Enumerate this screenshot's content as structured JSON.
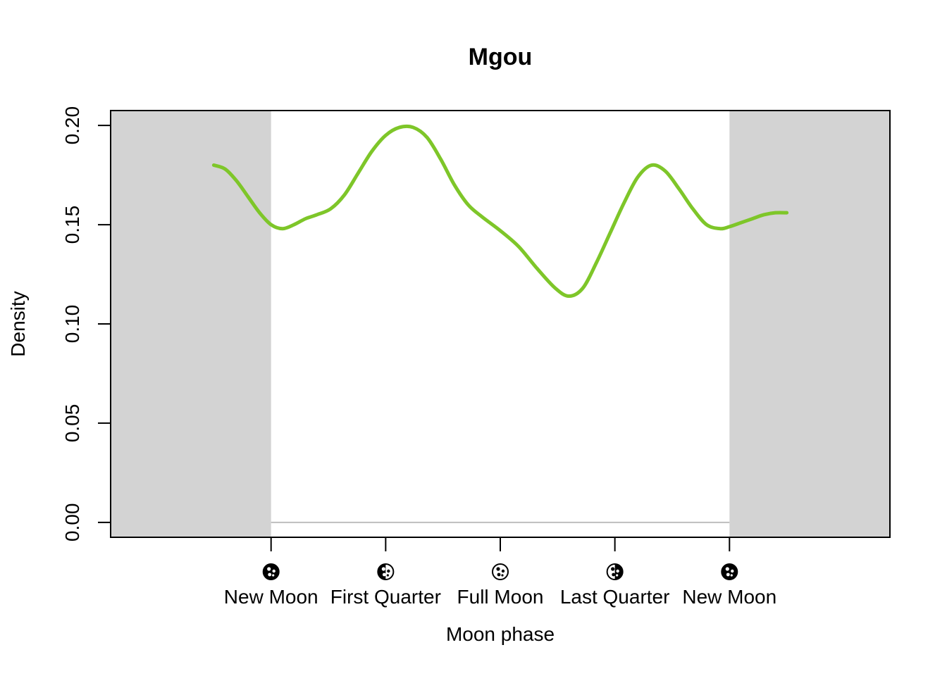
{
  "chart_data": {
    "type": "line",
    "title": "Mgou",
    "xlabel": "Moon phase",
    "ylabel": "Density",
    "xlim": [
      -0.35,
      1.35
    ],
    "ylim": [
      -0.0075,
      0.2075
    ],
    "y_ticks": [
      "0.00",
      "0.05",
      "0.10",
      "0.15",
      "0.20"
    ],
    "y_tick_values": [
      0.0,
      0.05,
      0.1,
      0.15,
      0.2
    ],
    "x_tick_values": [
      0,
      0.25,
      0.5,
      0.75,
      1.0
    ],
    "x_tick_labels": [
      "New Moon",
      "First Quarter",
      "Full Moon",
      "Last Quarter",
      "New Moon"
    ],
    "x_tick_icons": [
      "new-moon-icon",
      "first-quarter-icon",
      "full-moon-icon",
      "last-quarter-icon",
      "new-moon-icon"
    ],
    "shaded_regions": [
      [
        -0.35,
        0.0
      ],
      [
        1.0,
        1.35
      ]
    ],
    "shade_color": "#d3d3d3",
    "baseline": {
      "y": 0.0,
      "from": 0.0,
      "to": 1.0,
      "color": "#bebebe"
    },
    "grid": false,
    "series": [
      {
        "color": "#7ec629",
        "x": [
          -0.125,
          -0.1,
          -0.075,
          -0.05,
          -0.025,
          0.0,
          0.025,
          0.05,
          0.075,
          0.1,
          0.13,
          0.16,
          0.19,
          0.22,
          0.25,
          0.28,
          0.31,
          0.34,
          0.37,
          0.4,
          0.43,
          0.46,
          0.5,
          0.54,
          0.58,
          0.62,
          0.65,
          0.68,
          0.71,
          0.74,
          0.77,
          0.8,
          0.83,
          0.86,
          0.89,
          0.92,
          0.95,
          0.98,
          1.0,
          1.025,
          1.05,
          1.075,
          1.1,
          1.125
        ],
        "y": [
          0.18,
          0.178,
          0.172,
          0.164,
          0.156,
          0.15,
          0.148,
          0.15,
          0.153,
          0.155,
          0.158,
          0.165,
          0.176,
          0.187,
          0.195,
          0.199,
          0.199,
          0.194,
          0.183,
          0.17,
          0.16,
          0.154,
          0.147,
          0.139,
          0.128,
          0.118,
          0.114,
          0.118,
          0.131,
          0.146,
          0.161,
          0.174,
          0.18,
          0.177,
          0.168,
          0.158,
          0.15,
          0.148,
          0.149,
          0.151,
          0.153,
          0.155,
          0.156,
          0.156
        ]
      }
    ]
  }
}
